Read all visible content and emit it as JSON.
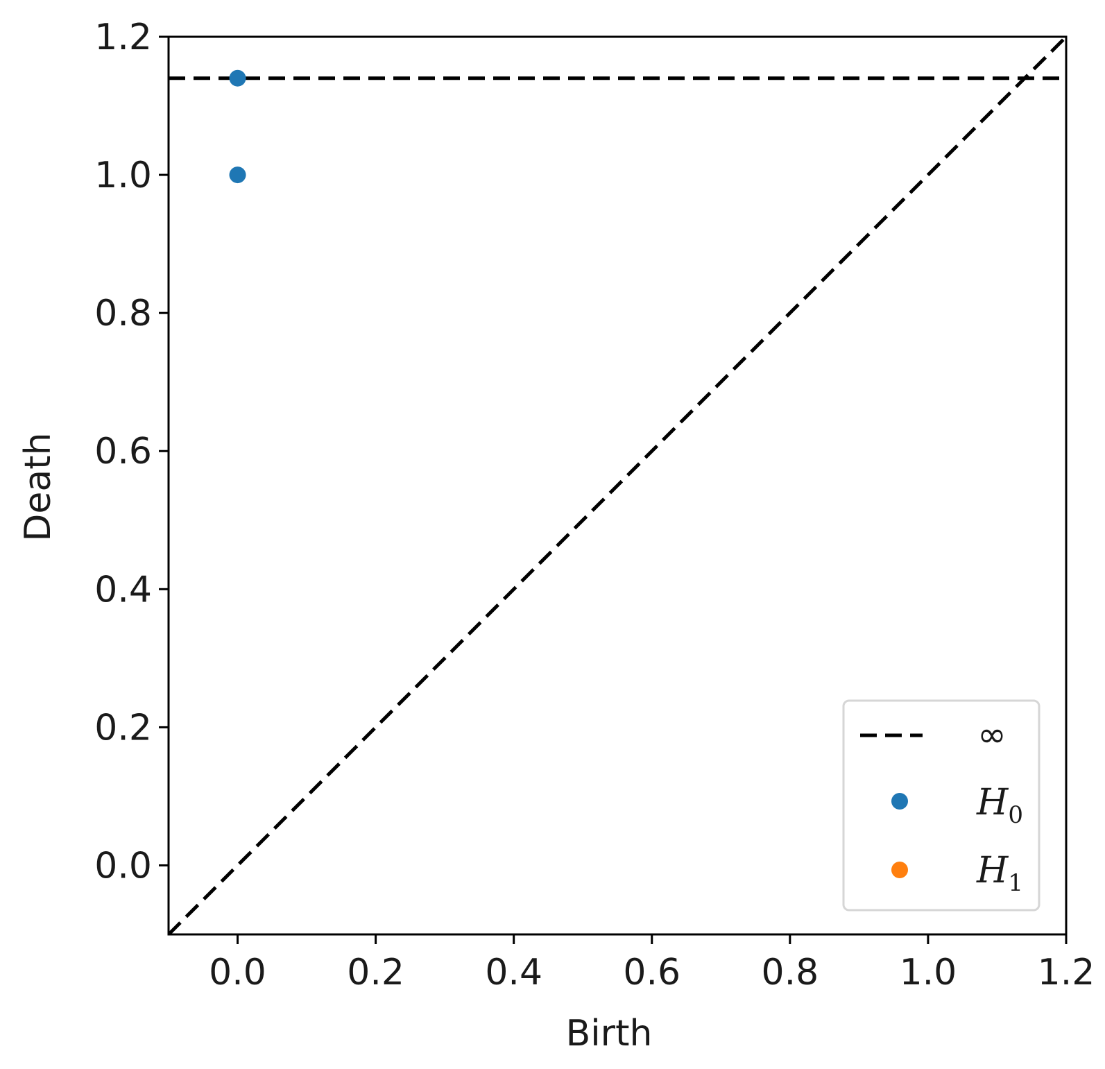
{
  "chart_data": {
    "type": "scatter",
    "xlabel": "Birth",
    "ylabel": "Death",
    "xlim": [
      -0.1,
      1.2
    ],
    "ylim": [
      -0.1,
      1.2
    ],
    "x_ticks": [
      "0.0",
      "0.2",
      "0.4",
      "0.6",
      "0.8",
      "1.0",
      "1.2"
    ],
    "y_ticks": [
      "0.0",
      "0.2",
      "0.4",
      "0.6",
      "0.8",
      "1.0",
      "1.2"
    ],
    "grid": false,
    "legend_position": "bottom-right",
    "series": [
      {
        "name": "H0",
        "label_base": "H",
        "label_sub": "0",
        "color": "#1f77b4",
        "points": [
          {
            "x": 0.0,
            "y": 1.0
          },
          {
            "x": 0.0,
            "y": 1.14
          }
        ]
      },
      {
        "name": "H1",
        "label_base": "H",
        "label_sub": "1",
        "color": "#ff7f0e",
        "points": []
      }
    ],
    "reference_lines": [
      {
        "kind": "diagonal",
        "from": [
          -0.1,
          -0.1
        ],
        "to": [
          1.2,
          1.2
        ],
        "style": "dashed",
        "color": "#000000"
      },
      {
        "kind": "horizontal",
        "name": "infinity",
        "y": 1.14,
        "style": "dashed",
        "color": "#000000",
        "legend_label": "∞"
      }
    ]
  }
}
